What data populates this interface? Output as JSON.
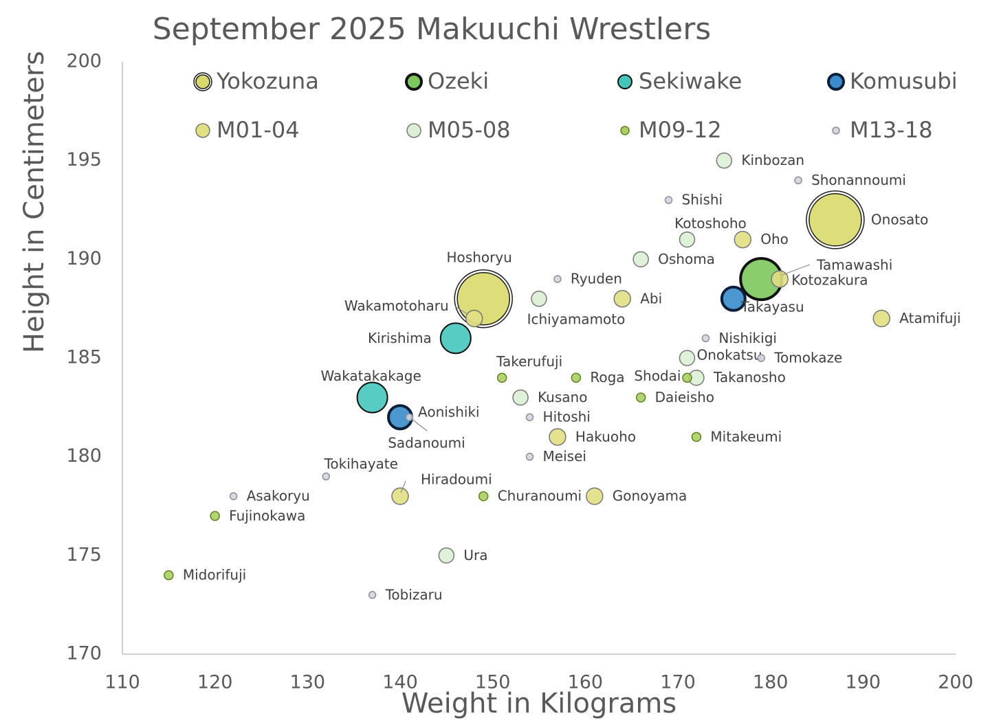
{
  "chart_data": {
    "type": "scatter",
    "title": "September 2025 Makuuchi Wrestlers",
    "x_label": "Weight in Kilograms",
    "y_label": "Height in Centimeters",
    "xlim": [
      110,
      200
    ],
    "xticks": [
      110,
      120,
      130,
      140,
      150,
      160,
      170,
      180,
      190,
      200
    ],
    "ylim": [
      170,
      200
    ],
    "yticks": [
      170,
      175,
      180,
      185,
      190,
      195,
      200
    ],
    "grid": false,
    "series": [
      {
        "name": "Yokozuna",
        "color": "#d9d96b",
        "x": [
          187,
          149
        ],
        "values": [
          192,
          188
        ],
        "labels": [
          "Onosato",
          "Hoshoryu"
        ]
      },
      {
        "name": "Ozeki",
        "color": "#7cc85c",
        "x": [
          179
        ],
        "values": [
          189
        ],
        "labels": [
          "Kotozakura"
        ]
      },
      {
        "name": "Sekiwake",
        "color": "#45c6bb",
        "x": [
          146,
          137
        ],
        "values": [
          186,
          183
        ],
        "labels": [
          "Kirishima",
          "Wakatakakage"
        ]
      },
      {
        "name": "Komusubi",
        "color": "#3a8ccc",
        "x": [
          176,
          140
        ],
        "values": [
          188,
          182
        ],
        "labels": [
          "Takayasu",
          "Aonishiki"
        ]
      },
      {
        "name": "M01-04",
        "color": "#e0df82",
        "x": [
          177,
          164,
          181,
          192,
          157,
          161,
          140,
          148
        ],
        "values": [
          191,
          188,
          189,
          187,
          181,
          178,
          178,
          187
        ],
        "labels": [
          "Oho",
          "Abi",
          "Tamawashi",
          "Atamifuji",
          "Hakuoho",
          "Gonoyama",
          "Hiradoumi",
          "Wakamotoharu"
        ]
      },
      {
        "name": "M05-08",
        "color": "#dcefd4",
        "x": [
          175,
          171,
          166,
          155,
          171,
          172,
          153,
          145
        ],
        "values": [
          195,
          191,
          190,
          188,
          185,
          184,
          183,
          175
        ],
        "labels": [
          "Kinbozan",
          "Kotoshoho",
          "Oshoma",
          "Ichiyamamoto",
          "Onokatsu",
          "Takanosho",
          "Kusano",
          "Ura"
        ]
      },
      {
        "name": "M09-12",
        "color": "#a9d060",
        "x": [
          151,
          159,
          171,
          166,
          172,
          149,
          120,
          115
        ],
        "values": [
          184,
          184,
          184,
          183,
          181,
          178,
          177,
          174
        ],
        "labels": [
          "Takerufuji",
          "Roga",
          "Shodai",
          "Daieisho",
          "Mitakeumi",
          "Churanoumi",
          "Fujinokawa",
          "Midorifuji"
        ]
      },
      {
        "name": "M13-18",
        "color": "#d3d6de",
        "x": [
          183,
          169,
          157,
          173,
          179,
          154,
          154,
          132,
          122,
          137,
          141
        ],
        "values": [
          194,
          193,
          189,
          186,
          185,
          182,
          180,
          179,
          178,
          173,
          182
        ],
        "labels": [
          "Shonannoumi",
          "Shishi",
          "Ryuden",
          "Nishikigi",
          "Tomokaze",
          "Hitoshi",
          "Meisei",
          "Tokihayate",
          "Asakoryu",
          "Tobizaru",
          "Sadanoumi"
        ]
      }
    ]
  }
}
